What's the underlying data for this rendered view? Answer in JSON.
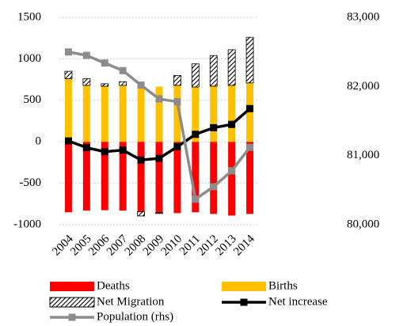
{
  "chart_data": {
    "type": "bar",
    "categories": [
      "2004",
      "2005",
      "2006",
      "2007",
      "2008",
      "2009",
      "2010",
      "2011",
      "2012",
      "2013",
      "2014"
    ],
    "series": [
      {
        "name": "Deaths",
        "type": "bar",
        "color": "#ff0000",
        "values": [
          -850,
          -830,
          -825,
          -830,
          -845,
          -855,
          -860,
          -850,
          -870,
          -890,
          -870
        ]
      },
      {
        "name": "Births",
        "type": "bar",
        "color": "#ffc000",
        "values": [
          760,
          680,
          670,
          680,
          680,
          665,
          680,
          660,
          670,
          680,
          710
        ]
      },
      {
        "name": "Net Migration",
        "type": "bar",
        "color": "#000000",
        "pattern": "hatch",
        "values": [
          90,
          80,
          30,
          45,
          -50,
          -10,
          120,
          280,
          370,
          430,
          550
        ]
      },
      {
        "name": "Net increase",
        "type": "line",
        "color": "#000000",
        "values": [
          10,
          -70,
          -120,
          -100,
          -220,
          -200,
          -60,
          90,
          170,
          210,
          400
        ]
      },
      {
        "name": "Population (rhs)",
        "type": "line",
        "axis": "y2",
        "color": "#8c8c8c",
        "values": [
          82500,
          82450,
          82340,
          82230,
          82020,
          81820,
          81780,
          80370,
          80550,
          80780,
          81120
        ]
      }
    ],
    "ylim": [
      -1000,
      1500
    ],
    "yticks": [
      -1000,
      -500,
      0,
      500,
      1000,
      1500
    ],
    "y2lim": [
      80000,
      83000
    ],
    "y2ticks": [
      {
        "value": 80000,
        "label": "80,000"
      },
      {
        "value": 81000,
        "label": "81,000"
      },
      {
        "value": 82000,
        "label": "82,000"
      },
      {
        "value": 83000,
        "label": "83,000"
      }
    ],
    "grid": true,
    "legend": "bottom"
  }
}
